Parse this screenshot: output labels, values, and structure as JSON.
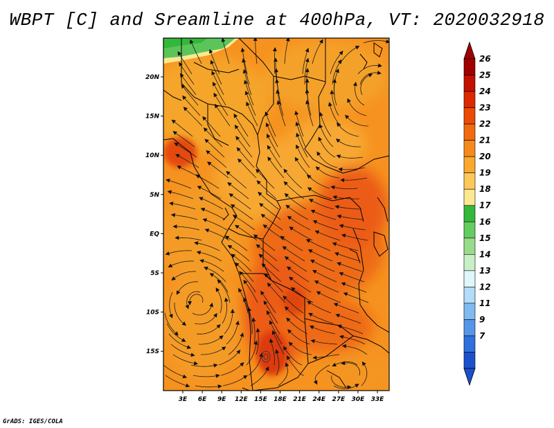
{
  "title": "WBPT [C] and Sreamline at 400hPa, VT: 2020032918",
  "credit": "GrADS: IGES/COLA",
  "map": {
    "x_ticks": [
      "3E",
      "6E",
      "9E",
      "12E",
      "15E",
      "18E",
      "21E",
      "24E",
      "27E",
      "30E",
      "33E"
    ],
    "y_ticks": [
      "20N",
      "15N",
      "10N",
      "5N",
      "EQ",
      "5S",
      "10S",
      "15S"
    ]
  },
  "colorbar": {
    "levels": [
      "26",
      "25",
      "24",
      "23",
      "22",
      "21",
      "20",
      "19",
      "18",
      "17",
      "16",
      "15",
      "14",
      "13",
      "12",
      "11",
      "9",
      "7"
    ],
    "colors": [
      "#a00000",
      "#c41000",
      "#de2800",
      "#ec4a05",
      "#f26a10",
      "#f6891c",
      "#faa82e",
      "#fcc85a",
      "#fde890",
      "#34b83a",
      "#64cd60",
      "#98dc8a",
      "#c8efc8",
      "#e0f6fb",
      "#b2dcf7",
      "#80baf0",
      "#5596e8",
      "#2f70dd",
      "#1a50cc"
    ],
    "arrow_top_color": "#a00000",
    "arrow_bottom_color": "#1a50cc"
  }
}
